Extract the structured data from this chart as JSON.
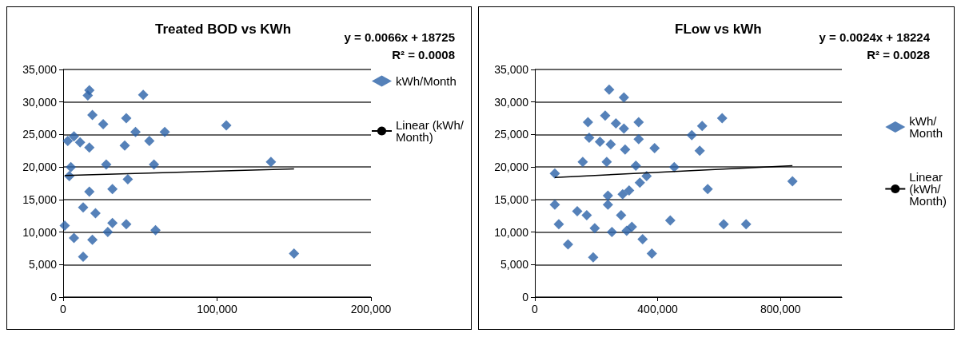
{
  "chart_data": [
    {
      "type": "scatter",
      "title": "Treated BOD vs KWh",
      "grid": "y",
      "legend": "right",
      "annotations": [
        "y = 0.0066x + 18725",
        "R² = 0.0008"
      ],
      "xlim": [
        0,
        200000
      ],
      "xticks": [
        0,
        {
          "value": 100000,
          "label": "100,000"
        },
        {
          "value": 200000,
          "label": "200,000"
        }
      ],
      "ylim": [
        0,
        35000
      ],
      "yticks": [
        0,
        {
          "value": 5000,
          "label": "5,000"
        },
        {
          "value": 10000,
          "label": "10,000"
        },
        {
          "value": 15000,
          "label": "15,000"
        },
        {
          "value": 20000,
          "label": "20,000"
        },
        {
          "value": 25000,
          "label": "25,000"
        },
        {
          "value": 30000,
          "label": "30,000"
        },
        {
          "value": 35000,
          "label": "35,000"
        }
      ],
      "series": [
        {
          "name": "kWh/Month",
          "marker": "diamond",
          "color": "#2a62a8",
          "x": [
            17000,
            16000,
            52000,
            106000,
            135000,
            150000,
            19000,
            26000,
            41000,
            47000,
            66000,
            40000,
            56000,
            11000,
            7000,
            17000,
            3000,
            59000,
            28000,
            5000,
            4000,
            42000,
            32000,
            17000,
            13000,
            21000,
            32000,
            41000,
            60000,
            1000,
            7000,
            19000,
            13000,
            29000
          ],
          "values": [
            31800,
            31000,
            31100,
            26400,
            20800,
            6700,
            28000,
            26600,
            27500,
            25400,
            25400,
            23300,
            24000,
            23800,
            24700,
            23000,
            24000,
            20400,
            20400,
            20000,
            18600,
            18100,
            16600,
            16200,
            13800,
            12900,
            11400,
            11200,
            10300,
            11000,
            9100,
            8800,
            6200,
            10000
          ]
        },
        {
          "name": "Linear (kWh/Month)",
          "type": "line",
          "color": "#000000",
          "x": [
            1000,
            150000
          ],
          "marker": "none",
          "values": [
            18700,
            19700
          ]
        }
      ]
    },
    {
      "type": "scatter",
      "title": "FLow vs kWh",
      "grid": "y",
      "legend": "right",
      "annotations": [
        "y = 0.0024x + 18224",
        "R² = 0.0028"
      ],
      "xlim": [
        0,
        1000000
      ],
      "xticks": [
        0,
        {
          "value": 400000,
          "label": "400,000"
        },
        {
          "value": 800000,
          "label": "800,000"
        }
      ],
      "ylim": [
        0,
        35000
      ],
      "yticks": [
        0,
        {
          "value": 5000,
          "label": "5,000"
        },
        {
          "value": 10000,
          "label": "10,000"
        },
        {
          "value": 15000,
          "label": "15,000"
        },
        {
          "value": 20000,
          "label": "20,000"
        },
        {
          "value": 25000,
          "label": "25,000"
        },
        {
          "value": 30000,
          "label": "30,000"
        },
        {
          "value": 35000,
          "label": "35,000"
        }
      ],
      "series": [
        {
          "name": "kWh/Month",
          "marker": "diamond",
          "color": "#2a62a8",
          "x": [
            242000,
            290000,
            229000,
            264000,
            290000,
            173000,
            338000,
            177000,
            212000,
            247000,
            294000,
            338000,
            390000,
            156000,
            234000,
            329000,
            364000,
            342000,
            307000,
            286000,
            65000,
            454000,
            511000,
            545000,
            610000,
            537000,
            563000,
            839000,
            65000,
            78000,
            108000,
            138000,
            169000,
            195000,
            190000,
            238000,
            238000,
            281000,
            251000,
            299000,
            316000,
            351000,
            381000,
            441000,
            615000,
            688000
          ],
          "values": [
            31900,
            30700,
            27900,
            26700,
            25900,
            26900,
            26900,
            24500,
            23900,
            23500,
            22700,
            24300,
            22900,
            20800,
            20800,
            20200,
            18600,
            17600,
            16400,
            15800,
            19000,
            20000,
            24900,
            26300,
            27500,
            22500,
            16600,
            17800,
            14200,
            11200,
            8100,
            13200,
            12600,
            10600,
            6100,
            15600,
            14200,
            12600,
            10000,
            10200,
            10800,
            8900,
            6700,
            11800,
            11200,
            11200
          ]
        },
        {
          "name": "Linear (kWh/Month)",
          "type": "line",
          "color": "#000000",
          "x": [
            65000,
            839000
          ],
          "marker": "none",
          "values": [
            18400,
            20200
          ]
        }
      ]
    }
  ]
}
